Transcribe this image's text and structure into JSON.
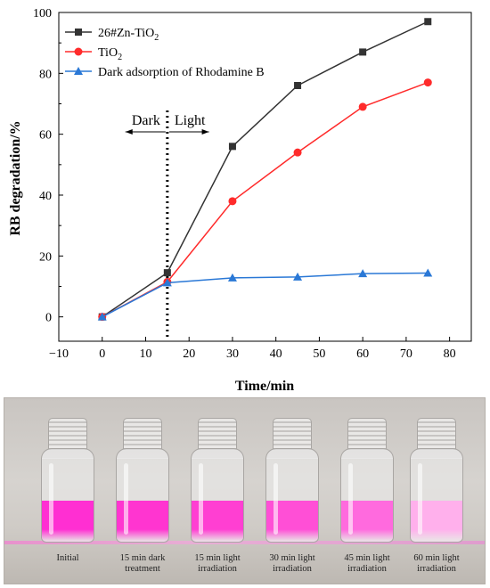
{
  "chart_data": {
    "type": "line",
    "x": [
      0,
      15,
      30,
      45,
      60,
      75
    ],
    "series": [
      {
        "name": "26#Zn-TiO2",
        "color": "#333333",
        "marker": "square",
        "values": [
          0,
          14.5,
          56,
          76,
          87,
          97
        ]
      },
      {
        "name": "TiO2",
        "color": "#ff2b2b",
        "marker": "circle",
        "values": [
          0,
          11.5,
          38,
          54,
          69,
          77
        ]
      },
      {
        "name": "Dark adsorption of Rhodamine B",
        "color": "#2a78d6",
        "marker": "triangle",
        "values": [
          0,
          11.2,
          12.8,
          13.1,
          14.2,
          14.4
        ]
      }
    ],
    "xlabel": "Time/min",
    "ylabel": "RB  degradation/%",
    "xlim": [
      -10,
      85
    ],
    "ylim": [
      -8,
      100
    ],
    "xticks": [
      -10,
      0,
      10,
      20,
      30,
      40,
      50,
      60,
      70,
      80
    ],
    "yticks": [
      0,
      20,
      40,
      60,
      80,
      100
    ],
    "legend_position": "top-left",
    "annotation": {
      "x": 15,
      "left_label": "Dark",
      "right_label": "Light"
    }
  },
  "photo": {
    "liquid_colors": [
      "#ff2fd2",
      "#ff35d0",
      "#ff3fd2",
      "#ff4fd6",
      "#ff6ade",
      "#ffb0ec"
    ],
    "captions": [
      [
        "Initial"
      ],
      [
        "15 min dark",
        "treatment"
      ],
      [
        "15 min light",
        "irradiation"
      ],
      [
        "30 min light",
        "irradiation"
      ],
      [
        "45 min light",
        "irradiation"
      ],
      [
        "60 min light",
        "irradiation"
      ]
    ]
  }
}
